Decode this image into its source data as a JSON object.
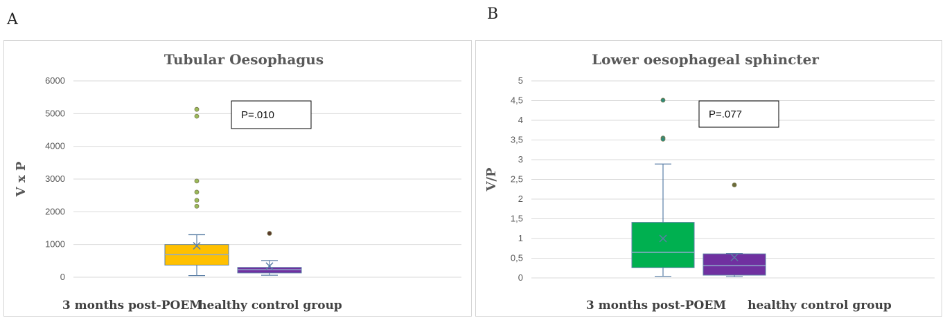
{
  "panels": {
    "a": {
      "letter": "A"
    },
    "b": {
      "letter": "B"
    }
  },
  "chart_data": [
    {
      "type": "box",
      "title": "Tubular Oesophagus",
      "ylabel": "V x P",
      "xlabel": "",
      "ylim": [
        0,
        6000
      ],
      "yticks": [
        0,
        1000,
        2000,
        3000,
        4000,
        5000,
        6000
      ],
      "ytick_labels": [
        "0",
        "1000",
        "2000",
        "3000",
        "4000",
        "5000",
        "6000"
      ],
      "grid": true,
      "annotation": "P=.010",
      "categories": [
        "3 months post-POEM",
        "healthy control group"
      ],
      "boxes": [
        {
          "q1": 370,
          "median": 690,
          "q3": 1000,
          "mean": 960,
          "whisker_low": 50,
          "whisker_high": 1300,
          "outliers": [
            5130,
            4920,
            2940,
            2600,
            2350,
            2170
          ],
          "color": "#ffc000",
          "outlier_color": "#9bbb59"
        },
        {
          "q1": 130,
          "median": 230,
          "q3": 300,
          "mean": 340,
          "whisker_low": 60,
          "whisker_high": 510,
          "outliers": [
            1340
          ],
          "color": "#7030a0",
          "outlier_color": "#5a3a2a"
        }
      ]
    },
    {
      "type": "box",
      "title": "Lower oesophageal sphincter",
      "ylabel": "V/P",
      "xlabel": "",
      "ylim": [
        0,
        5
      ],
      "yticks": [
        0,
        0.5,
        1,
        1.5,
        2,
        2.5,
        3,
        3.5,
        4,
        4.5,
        5
      ],
      "ytick_labels": [
        "0",
        "0,5",
        "1",
        "1,5",
        "2",
        "2,5",
        "3",
        "3,5",
        "4",
        "4,5",
        "5"
      ],
      "grid": true,
      "annotation": "P=.077",
      "categories": [
        "3 months post-POEM",
        "healthy control group"
      ],
      "boxes": [
        {
          "q1": 0.26,
          "median": 0.65,
          "q3": 1.41,
          "mean": 1.0,
          "whisker_low": 0.04,
          "whisker_high": 2.89,
          "outliers": [
            4.51,
            3.55,
            3.52
          ],
          "color": "#00b050",
          "outlier_color": "#2e8b7a"
        },
        {
          "q1": 0.07,
          "median": 0.31,
          "q3": 0.61,
          "mean": 0.52,
          "whisker_low": 0.03,
          "whisker_high": 0.62,
          "outliers": [
            2.36
          ],
          "color": "#7030a0",
          "outlier_color": "#6b6b3a"
        }
      ]
    }
  ]
}
